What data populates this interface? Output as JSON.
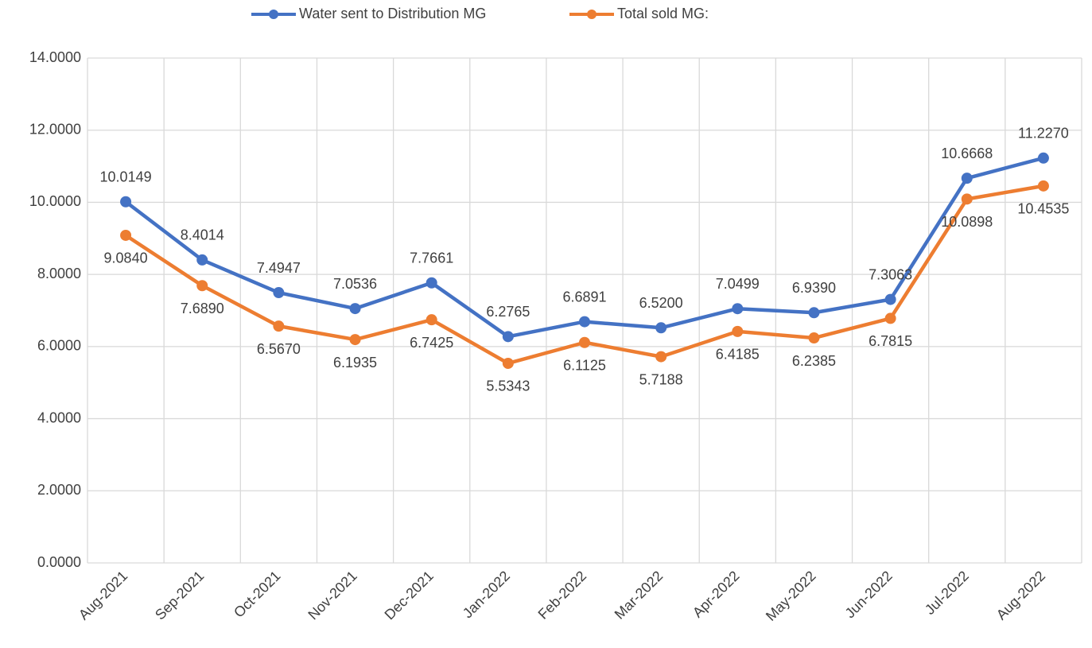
{
  "chart_data": {
    "type": "line",
    "categories": [
      "Aug-2021",
      "Sep-2021",
      "Oct-2021",
      "Nov-2021",
      "Dec-2021",
      "Jan-2022",
      "Feb-2022",
      "Mar-2022",
      "Apr-2022",
      "May-2022",
      "Jun-2022",
      "Jul-2022",
      "Aug-2022"
    ],
    "series": [
      {
        "name": "Water sent to Distribution MG",
        "color": "#4472c4",
        "values": [
          10.0149,
          8.4014,
          7.4947,
          7.0536,
          7.7661,
          6.2765,
          6.6891,
          6.52,
          7.0499,
          6.939,
          7.3063,
          10.6668,
          11.227
        ],
        "value_labels": [
          "10.0149",
          "8.4014",
          "7.4947",
          "7.0536",
          "7.7661",
          "6.2765",
          "6.6891",
          "6.5200",
          "7.0499",
          "6.9390",
          "7.3063",
          "10.6668",
          "11.2270"
        ]
      },
      {
        "name": "Total sold MG:",
        "color": "#ed7d31",
        "values": [
          9.084,
          7.689,
          6.567,
          6.1935,
          6.7425,
          5.5343,
          6.1125,
          5.7188,
          6.4185,
          6.2385,
          6.7815,
          10.0898,
          10.4535
        ],
        "value_labels": [
          "9.0840",
          "7.6890",
          "6.5670",
          "6.1935",
          "6.7425",
          "5.5343",
          "6.1125",
          "5.7188",
          "6.4185",
          "6.2385",
          "6.7815",
          "10.0898",
          "10.4535"
        ]
      }
    ],
    "ylim": [
      0,
      14
    ],
    "yticks": [
      {
        "value": 0,
        "label": "0.0000"
      },
      {
        "value": 2,
        "label": "2.0000"
      },
      {
        "value": 4,
        "label": "4.0000"
      },
      {
        "value": 6,
        "label": "6.0000"
      },
      {
        "value": 8,
        "label": "8.0000"
      },
      {
        "value": 10,
        "label": "10.0000"
      },
      {
        "value": 12,
        "label": "12.0000"
      },
      {
        "value": 14,
        "label": "14.0000"
      }
    ],
    "grid": true,
    "legend": "top"
  }
}
